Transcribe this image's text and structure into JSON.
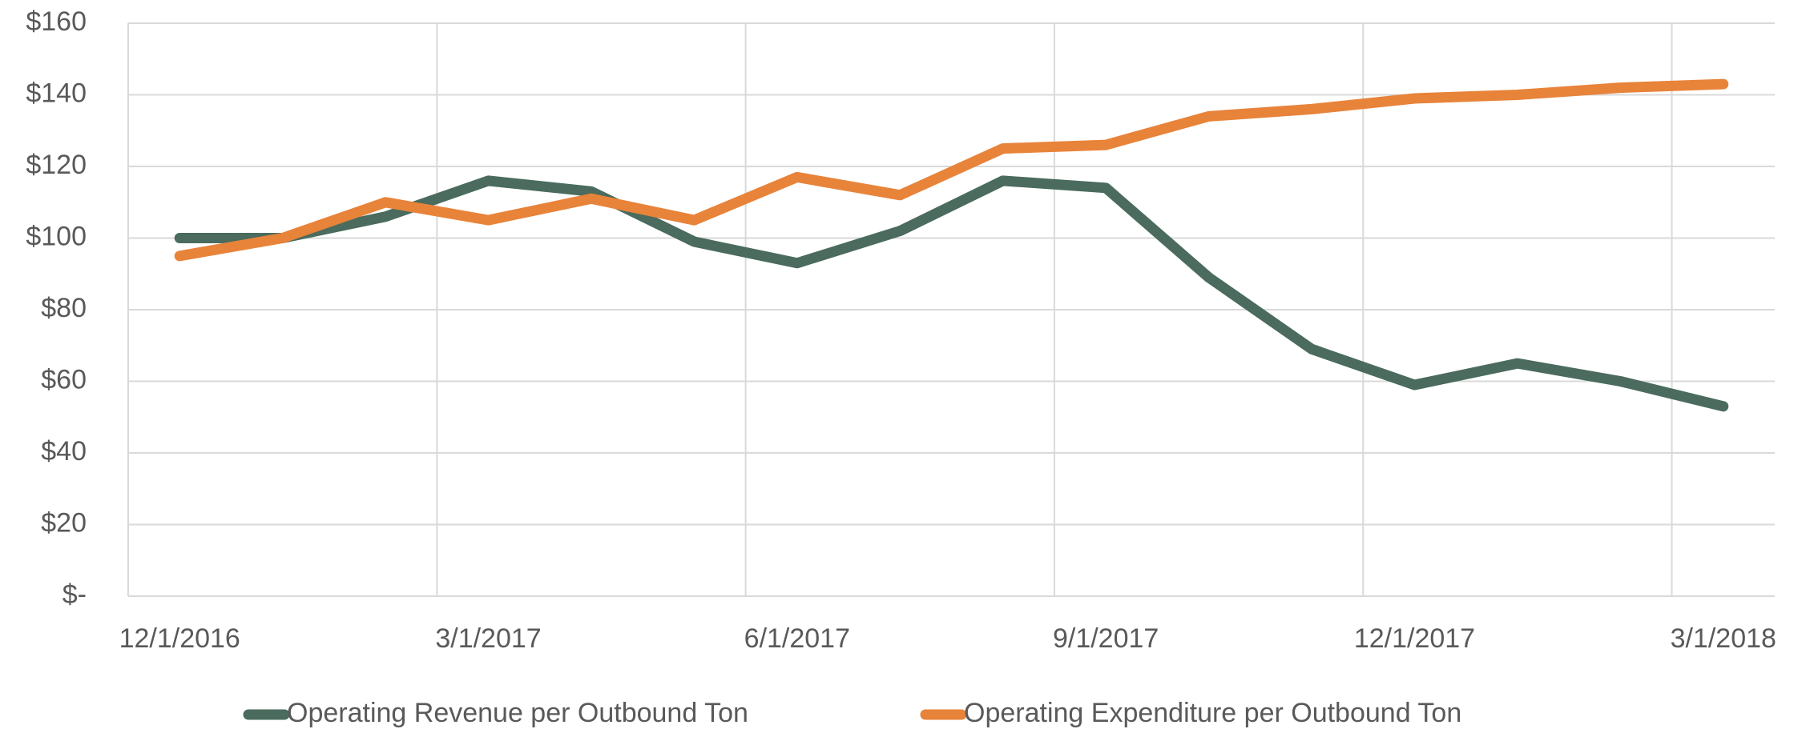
{
  "chart_data": {
    "type": "line",
    "categories": [
      "12/1/2016",
      null,
      null,
      "3/1/2017",
      null,
      null,
      "6/1/2017",
      null,
      null,
      "9/1/2017",
      null,
      null,
      "12/1/2017",
      null,
      null,
      "3/1/2018"
    ],
    "series": [
      {
        "name": "Operating Revenue per Outbound Ton",
        "color": "#4a6b5d",
        "values": [
          100,
          100,
          106,
          116,
          113,
          99,
          93,
          102,
          116,
          114,
          89,
          69,
          59,
          65,
          60,
          53
        ]
      },
      {
        "name": "Operating Expenditure per Outbound Ton",
        "color": "#e8833a",
        "values": [
          95,
          100,
          110,
          105,
          111,
          105,
          117,
          112,
          125,
          126,
          134,
          136,
          139,
          140,
          142,
          143
        ]
      }
    ],
    "ylim": [
      0,
      160
    ],
    "yticks": [
      {
        "value": 0,
        "label": "$-"
      },
      {
        "value": 20,
        "label": "$20"
      },
      {
        "value": 40,
        "label": "$40"
      },
      {
        "value": 60,
        "label": "$60"
      },
      {
        "value": 80,
        "label": "$80"
      },
      {
        "value": 100,
        "label": "$100"
      },
      {
        "value": 120,
        "label": "$120"
      },
      {
        "value": 140,
        "label": "$140"
      },
      {
        "value": 160,
        "label": "$160"
      }
    ],
    "grid": true,
    "legend": "bottom"
  }
}
